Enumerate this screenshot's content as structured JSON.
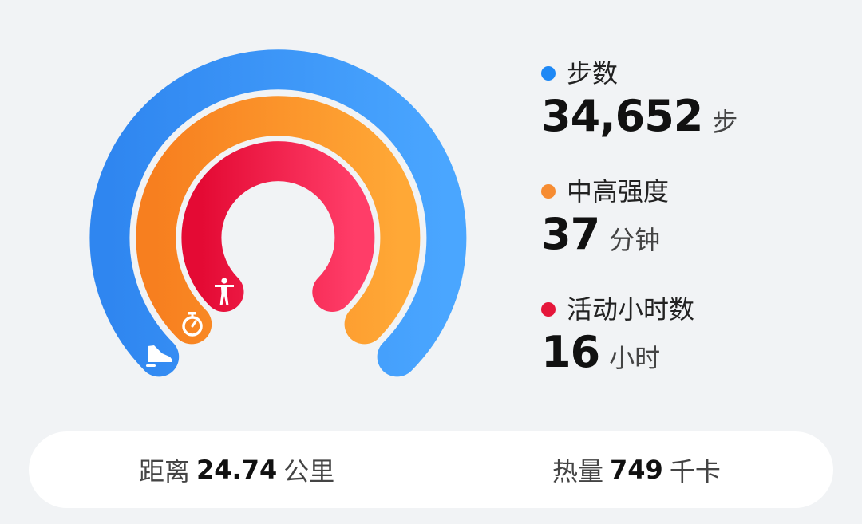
{
  "rings": [
    {
      "id": "steps",
      "color_start": "#2f86f0",
      "color_end": "#4aa6ff",
      "progress": 0.76,
      "icon": "shoe-icon"
    },
    {
      "id": "intensity",
      "color_start": "#f77f1f",
      "color_end": "#ffa836",
      "progress": 0.76,
      "icon": "stopwatch-icon"
    },
    {
      "id": "hours",
      "color_start": "#e40a34",
      "color_end": "#ff3d68",
      "progress": 0.76,
      "icon": "person-standing-icon"
    }
  ],
  "stats": {
    "steps": {
      "label": "步数",
      "value": "34,652",
      "unit": "步",
      "color": "#1e88f5"
    },
    "intensity": {
      "label": "中高强度",
      "value": "37",
      "unit": "分钟",
      "color": "#f68c32"
    },
    "hours": {
      "label": "活动小时数",
      "value": "16",
      "unit": "小时",
      "color": "#e5163a"
    }
  },
  "summary": {
    "distance": {
      "label": "距离",
      "value": "24.74",
      "unit": "公里"
    },
    "calories": {
      "label": "热量",
      "value": "749",
      "unit": "千卡"
    }
  }
}
